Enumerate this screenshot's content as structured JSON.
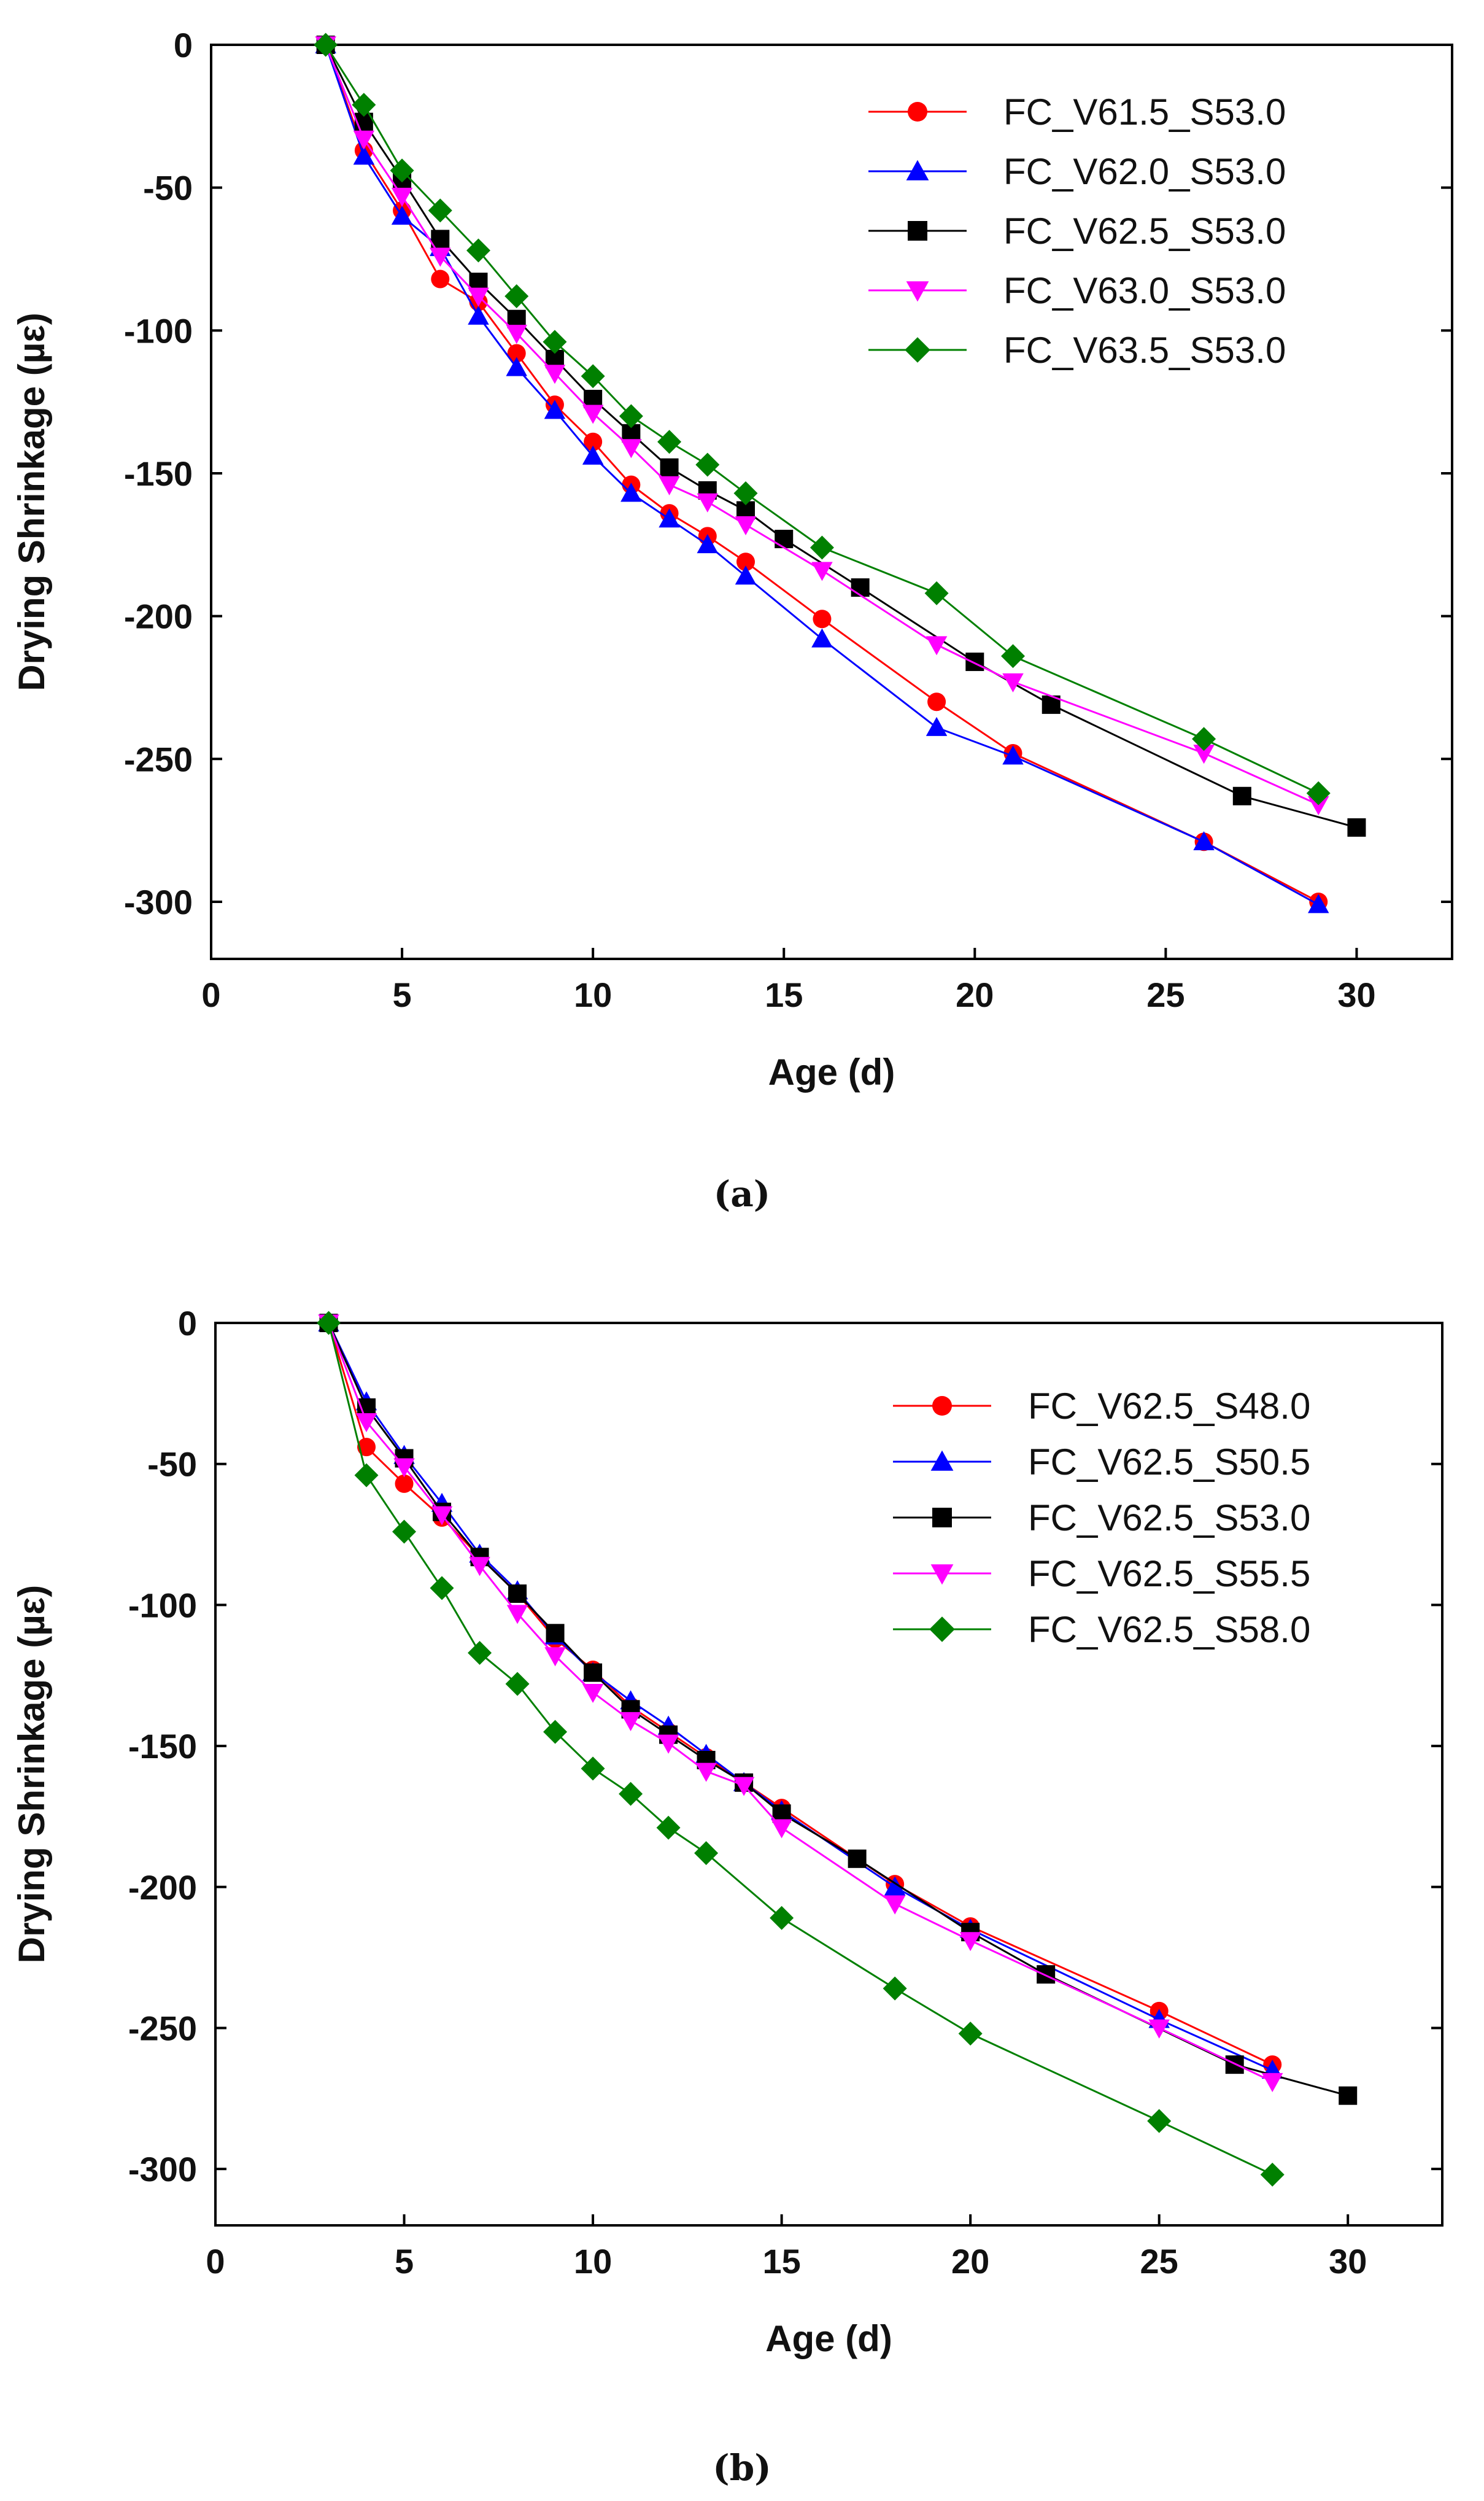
{
  "chart_data": [
    {
      "type": "line",
      "caption": "(a)",
      "xlabel": "Age (d)",
      "ylabel": "Drying Shrinkage (µε)",
      "xlim": [
        0,
        32.5
      ],
      "ylim": [
        -320,
        0
      ],
      "xticks": [
        0,
        5,
        10,
        15,
        20,
        25,
        30
      ],
      "yticks": [
        0,
        -50,
        -100,
        -150,
        -200,
        -250,
        -300
      ],
      "legend_position": "top-right",
      "series": [
        {
          "name": "FC_V61.5_S53.0",
          "color": "#ff0000",
          "marker": "circle",
          "x": [
            3,
            4,
            5,
            6,
            7,
            8,
            9,
            10,
            11,
            12,
            13,
            14,
            16,
            19,
            21,
            26,
            29
          ],
          "y": [
            0,
            -37,
            -58,
            -82,
            -90,
            -108,
            -126,
            -139,
            -154,
            -164,
            -172,
            -181,
            -201,
            -230,
            -248,
            -279,
            -300
          ]
        },
        {
          "name": "FC_V62.0_S53.0",
          "color": "#0000ff",
          "marker": "triangle-up",
          "x": [
            3,
            4,
            5,
            6,
            7,
            8,
            9,
            10,
            11,
            12,
            13,
            14,
            16,
            19,
            21,
            26,
            29
          ],
          "y": [
            0,
            -39,
            -60,
            -71,
            -95,
            -113,
            -128,
            -144,
            -157,
            -166,
            -175,
            -186,
            -208,
            -239,
            -249,
            -279,
            -301
          ]
        },
        {
          "name": "FC_V62.5_S53.0",
          "color": "#000000",
          "marker": "square",
          "x": [
            3,
            4,
            5,
            6,
            7,
            8,
            9,
            10,
            11,
            12,
            13,
            14,
            15,
            17,
            20,
            22,
            27,
            30
          ],
          "y": [
            0,
            -27,
            -47,
            -68,
            -83,
            -96,
            -110,
            -124,
            -136,
            -148,
            -156,
            -163,
            -173,
            -190,
            -216,
            -231,
            -263,
            -274
          ]
        },
        {
          "name": "FC_V63.0_S53.0",
          "color": "#ff00ff",
          "marker": "triangle-down",
          "x": [
            3,
            4,
            5,
            6,
            7,
            8,
            9,
            10,
            11,
            12,
            13,
            14,
            16,
            19,
            21,
            26,
            29
          ],
          "y": [
            0,
            -33,
            -53,
            -74,
            -88,
            -101,
            -115,
            -129,
            -141,
            -154,
            -160,
            -168,
            -184,
            -210,
            -223,
            -248,
            -266
          ]
        },
        {
          "name": "FC_V63.5_S53.0",
          "color": "#008000",
          "marker": "diamond",
          "x": [
            3,
            4,
            5,
            6,
            7,
            8,
            9,
            10,
            11,
            12,
            13,
            14,
            16,
            19,
            21,
            26,
            29
          ],
          "y": [
            0,
            -21,
            -44,
            -58,
            -72,
            -88,
            -104,
            -116,
            -130,
            -139,
            -147,
            -157,
            -176,
            -192,
            -214,
            -243,
            -262
          ]
        }
      ]
    },
    {
      "type": "line",
      "caption": "(b)",
      "xlabel": "Age (d)",
      "ylabel": "Drying Shrinkage (µε)",
      "xlim": [
        0,
        32.5
      ],
      "ylim": [
        -320,
        0
      ],
      "xticks": [
        0,
        5,
        10,
        15,
        20,
        25,
        30
      ],
      "yticks": [
        0,
        -50,
        -100,
        -150,
        -200,
        -250,
        -300
      ],
      "legend_position": "top-right",
      "series": [
        {
          "name": "FC_V62.5_S48.0",
          "color": "#ff0000",
          "marker": "circle",
          "x": [
            3,
            4,
            5,
            6,
            7,
            8,
            9,
            10,
            11,
            12,
            13,
            14,
            15,
            18,
            20,
            25,
            28
          ],
          "y": [
            0,
            -44,
            -57,
            -69,
            -83,
            -96,
            -112,
            -123,
            -136,
            -145,
            -154,
            -163,
            -172,
            -199,
            -214,
            -244,
            -263
          ]
        },
        {
          "name": "FC_V62.5_S50.5",
          "color": "#0000ff",
          "marker": "triangle-up",
          "x": [
            3,
            4,
            5,
            6,
            7,
            8,
            9,
            10,
            11,
            12,
            13,
            14,
            15,
            18,
            20,
            25,
            28
          ],
          "y": [
            0,
            -28,
            -47,
            -64,
            -82,
            -95,
            -111,
            -124,
            -134,
            -143,
            -153,
            -163,
            -173,
            -200,
            -215,
            -247,
            -265
          ]
        },
        {
          "name": "FC_V62.5_S53.0",
          "color": "#000000",
          "marker": "square",
          "x": [
            3,
            4,
            5,
            6,
            7,
            8,
            9,
            10,
            11,
            12,
            13,
            14,
            15,
            17,
            20,
            22,
            27,
            30
          ],
          "y": [
            0,
            -30,
            -48,
            -67,
            -83,
            -96,
            -110,
            -124,
            -137,
            -146,
            -155,
            -163,
            -174,
            -190,
            -216,
            -231,
            -263,
            -274
          ]
        },
        {
          "name": "FC_V62.5_S55.5",
          "color": "#ff00ff",
          "marker": "triangle-down",
          "x": [
            3,
            4,
            5,
            6,
            7,
            8,
            9,
            10,
            11,
            12,
            13,
            14,
            15,
            18,
            20,
            25,
            28
          ],
          "y": [
            0,
            -35,
            -51,
            -68,
            -86,
            -103,
            -118,
            -131,
            -141,
            -149,
            -159,
            -164,
            -179,
            -206,
            -219,
            -250,
            -269
          ]
        },
        {
          "name": "FC_V62.5_S58.0",
          "color": "#008000",
          "marker": "diamond",
          "x": [
            3,
            4,
            5,
            6,
            7,
            8,
            9,
            10,
            11,
            12,
            13,
            15,
            18,
            20,
            25,
            28
          ],
          "y": [
            0,
            -54,
            -74,
            -94,
            -117,
            -128,
            -145,
            -158,
            -167,
            -179,
            -188,
            -211,
            -236,
            -252,
            -283,
            -302
          ]
        }
      ]
    }
  ]
}
